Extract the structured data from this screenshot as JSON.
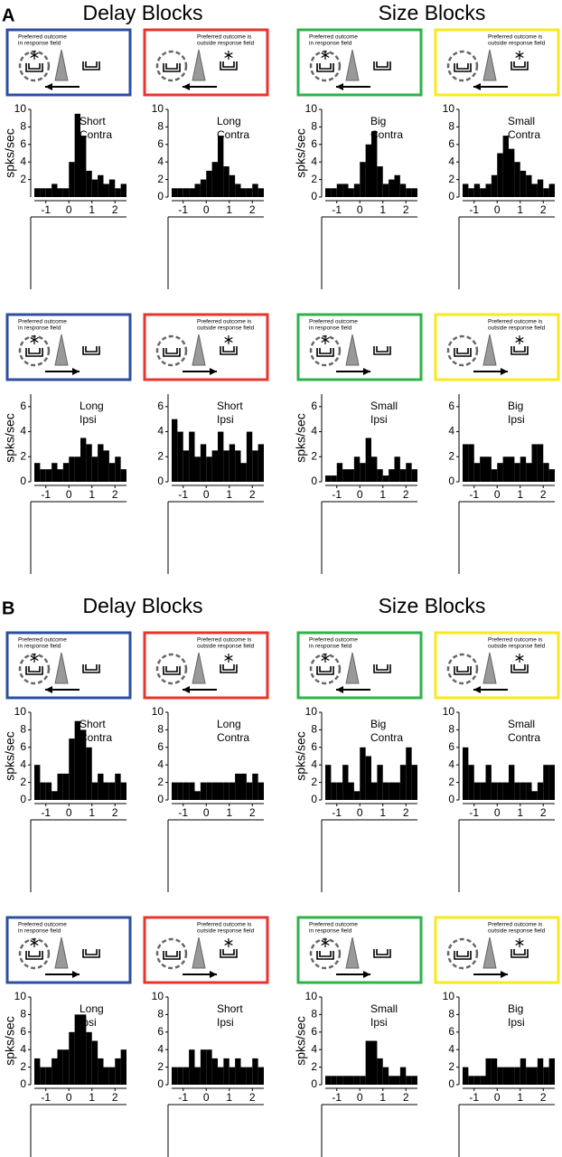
{
  "sections": [
    {
      "label": "A",
      "titles": [
        "Delay Blocks",
        "Size Blocks"
      ]
    },
    {
      "label": "B",
      "titles": [
        "Delay Blocks",
        "Size Blocks"
      ]
    }
  ],
  "chart_data": [
    {
      "type": "histogram",
      "ylabel": "spks/sec",
      "annotation": [
        "Short",
        "Contra"
      ],
      "box": {
        "color": "#2d4fa0",
        "text": [
          "Preferred outcome",
          "in response field"
        ],
        "preferred_side": "left",
        "arrow": "left"
      },
      "bins": [
        -1.5,
        -1.25,
        -1,
        -0.75,
        -0.5,
        -0.25,
        0,
        0.25,
        0.5,
        0.75,
        1,
        1.25,
        1.5,
        1.75,
        2,
        2.25,
        2.5
      ],
      "values": [
        1,
        1,
        1,
        1.5,
        1,
        1,
        4,
        9.5,
        7,
        3,
        2,
        2.5,
        1.5,
        2,
        1,
        1.5
      ],
      "color": "#000000",
      "xlim": [
        -1.5,
        2.5
      ],
      "xticks": [
        -1,
        0,
        1,
        2
      ],
      "ylim": [
        0,
        10
      ],
      "yticks": [
        2,
        4,
        6,
        8,
        10
      ]
    },
    {
      "type": "histogram",
      "annotation": [
        "Long",
        "Contra"
      ],
      "box": {
        "color": "#e8342c",
        "text": [
          "Preferred outcome is",
          "outside response field"
        ],
        "preferred_side": "right",
        "arrow": "left"
      },
      "bins": [
        -1.5,
        -1.25,
        -1,
        -0.75,
        -0.5,
        -0.25,
        0,
        0.25,
        0.5,
        0.75,
        1,
        1.25,
        1.5,
        1.75,
        2,
        2.25,
        2.5
      ],
      "values": [
        1,
        1,
        1,
        1,
        1.5,
        2,
        3,
        4,
        7,
        3.5,
        2.5,
        1.5,
        1,
        1,
        1.5,
        1
      ],
      "color": "#000000",
      "xlim": [
        -1.5,
        2.5
      ],
      "xticks": [
        -1,
        0,
        1,
        2
      ],
      "ylim": [
        0,
        10
      ],
      "yticks": [
        0,
        2,
        4,
        6,
        8,
        10
      ]
    },
    {
      "type": "histogram",
      "ylabel": "spks/sec",
      "annotation": [
        "Big",
        "Contra"
      ],
      "box": {
        "color": "#2db34a",
        "text": [
          "Preferred outcome",
          "in response field"
        ],
        "preferred_side": "left",
        "arrow": "left"
      },
      "bins": [
        -1.5,
        -1.25,
        -1,
        -0.75,
        -0.5,
        -0.25,
        0,
        0.25,
        0.5,
        0.75,
        1,
        1.25,
        1.5,
        1.75,
        2,
        2.25,
        2.5
      ],
      "values": [
        1,
        1,
        1.5,
        1.5,
        1,
        1.5,
        4,
        6,
        7.5,
        3.5,
        1.5,
        2,
        2.5,
        1.5,
        1,
        1
      ],
      "color": "#000000",
      "xlim": [
        -1.5,
        2.5
      ],
      "xticks": [
        -1,
        0,
        1,
        2
      ],
      "ylim": [
        0,
        10
      ],
      "yticks": [
        0,
        2,
        4,
        6,
        8,
        10
      ]
    },
    {
      "type": "histogram",
      "annotation": [
        "Small",
        "Contra"
      ],
      "box": {
        "color": "#f7ea1c",
        "text": [
          "Preferred outcome is",
          "outside response field"
        ],
        "preferred_side": "right",
        "arrow": "left"
      },
      "bins": [
        -1.5,
        -1.25,
        -1,
        -0.75,
        -0.5,
        -0.25,
        0,
        0.25,
        0.5,
        0.75,
        1,
        1.25,
        1.5,
        1.75,
        2,
        2.25,
        2.5
      ],
      "values": [
        1.5,
        1,
        1.5,
        1,
        1.5,
        2.5,
        5,
        7,
        5.5,
        4,
        3,
        2.5,
        1.5,
        2,
        1,
        1.5
      ],
      "color": "#000000",
      "xlim": [
        -1.5,
        2.5
      ],
      "xticks": [
        -1,
        0,
        1,
        2
      ],
      "ylim": [
        0,
        10
      ],
      "yticks": [
        0,
        2,
        4,
        6,
        8,
        10
      ]
    },
    {
      "type": "histogram",
      "ylabel": "spks/sec",
      "annotation": [
        "Long",
        "Ipsi"
      ],
      "box": {
        "color": "#2d4fa0",
        "text": [
          "Preferred outcome",
          "in response field"
        ],
        "preferred_side": "left",
        "arrow": "right"
      },
      "bins": [
        -1.5,
        -1.25,
        -1,
        -0.75,
        -0.5,
        -0.25,
        0,
        0.25,
        0.5,
        0.75,
        1,
        1.25,
        1.5,
        1.75,
        2,
        2.25,
        2.5
      ],
      "values": [
        1.5,
        1,
        1,
        1.5,
        1,
        1.5,
        2,
        2,
        3.5,
        3,
        2,
        3,
        2.5,
        1.5,
        2,
        1
      ],
      "color": "#000000",
      "xlim": [
        -1.5,
        2.5
      ],
      "xticks": [
        -1,
        0,
        1,
        2
      ],
      "ylim": [
        0,
        7
      ],
      "yticks": [
        0,
        2,
        4,
        6
      ]
    },
    {
      "type": "histogram",
      "annotation": [
        "Short",
        "Ipsi"
      ],
      "box": {
        "color": "#e8342c",
        "text": [
          "Preferred outcome is",
          "outside response field"
        ],
        "preferred_side": "right",
        "arrow": "right"
      },
      "bins": [
        -1.5,
        -1.25,
        -1,
        -0.75,
        -0.5,
        -0.25,
        0,
        0.25,
        0.5,
        0.75,
        1,
        1.25,
        1.5,
        1.75,
        2,
        2.25,
        2.5
      ],
      "values": [
        5,
        4,
        2.5,
        4,
        2,
        3,
        2,
        2.5,
        4,
        2.5,
        3,
        2.5,
        1.5,
        4,
        2.5,
        3
      ],
      "color": "#000000",
      "xlim": [
        -1.5,
        2.5
      ],
      "xticks": [
        -1,
        0,
        1,
        2
      ],
      "ylim": [
        0,
        7
      ],
      "yticks": [
        0,
        2,
        4,
        6
      ]
    },
    {
      "type": "histogram",
      "ylabel": "spks/sec",
      "annotation": [
        "Small",
        "Ipsi"
      ],
      "box": {
        "color": "#2db34a",
        "text": [
          "Preferred outcome",
          "in response field"
        ],
        "preferred_side": "left",
        "arrow": "right"
      },
      "bins": [
        -1.5,
        -1.25,
        -1,
        -0.75,
        -0.5,
        -0.25,
        0,
        0.25,
        0.5,
        0.75,
        1,
        1.25,
        1.5,
        1.75,
        2,
        2.25,
        2.5
      ],
      "values": [
        0.5,
        0.5,
        1.5,
        1,
        1,
        2,
        1.5,
        3.5,
        2,
        1,
        0.5,
        1,
        2,
        1,
        1.5,
        1
      ],
      "color": "#000000",
      "xlim": [
        -1.5,
        2.5
      ],
      "xticks": [
        -1,
        0,
        1,
        2
      ],
      "ylim": [
        0,
        7
      ],
      "yticks": [
        0,
        2,
        4,
        6
      ]
    },
    {
      "type": "histogram",
      "annotation": [
        "Big",
        "Ipsi"
      ],
      "box": {
        "color": "#f7ea1c",
        "text": [
          "Preferred outcome is",
          "outside response field"
        ],
        "preferred_side": "right",
        "arrow": "right"
      },
      "bins": [
        -1.5,
        -1.25,
        -1,
        -0.75,
        -0.5,
        -0.25,
        0,
        0.25,
        0.5,
        0.75,
        1,
        1.25,
        1.5,
        1.75,
        2,
        2.25,
        2.5
      ],
      "values": [
        3,
        3,
        1.5,
        2,
        2,
        1,
        1.5,
        2,
        2,
        1.5,
        2,
        1.5,
        3,
        3,
        1.5,
        1
      ],
      "color": "#000000",
      "xlim": [
        -1.5,
        2.5
      ],
      "xticks": [
        -1,
        0,
        1,
        2
      ],
      "ylim": [
        0,
        7
      ],
      "yticks": [
        0,
        2,
        4,
        6
      ]
    },
    {
      "type": "histogram",
      "ylabel": "spks/sec",
      "annotation": [
        "Short",
        "Contra"
      ],
      "box": {
        "color": "#2d4fa0",
        "text": [
          "Preferred outcome",
          "in response field"
        ],
        "preferred_side": "left",
        "arrow": "left"
      },
      "bins": [
        -1.5,
        -1.25,
        -1,
        -0.75,
        -0.5,
        -0.25,
        0,
        0.25,
        0.5,
        0.75,
        1,
        1.25,
        1.5,
        1.75,
        2,
        2.25,
        2.5
      ],
      "values": [
        4,
        2,
        2,
        1,
        3,
        3,
        7,
        9,
        8,
        6,
        2,
        3,
        2,
        2,
        3,
        2
      ],
      "color": "#000000",
      "xlim": [
        -1.5,
        2.5
      ],
      "xticks": [
        -1,
        0,
        1,
        2
      ],
      "ylim": [
        0,
        10
      ],
      "yticks": [
        0,
        2,
        4,
        6,
        8,
        10
      ]
    },
    {
      "type": "histogram",
      "annotation": [
        "Long",
        "Contra"
      ],
      "box": {
        "color": "#e8342c",
        "text": [
          "Preferred outcome is",
          "outside response field"
        ],
        "preferred_side": "right",
        "arrow": "left"
      },
      "bins": [
        -1.5,
        -1.25,
        -1,
        -0.75,
        -0.5,
        -0.25,
        0,
        0.25,
        0.5,
        0.75,
        1,
        1.25,
        1.5,
        1.75,
        2,
        2.25,
        2.5
      ],
      "values": [
        2,
        2,
        2,
        2,
        1,
        2,
        2,
        2,
        2,
        2,
        2,
        3,
        3,
        2,
        3,
        2
      ],
      "color": "#000000",
      "xlim": [
        -1.5,
        2.5
      ],
      "xticks": [
        -1,
        0,
        1,
        2
      ],
      "ylim": [
        0,
        10
      ],
      "yticks": [
        0,
        2,
        4,
        6,
        8,
        10
      ]
    },
    {
      "type": "histogram",
      "ylabel": "spks/sec",
      "annotation": [
        "Big",
        "Contra"
      ],
      "box": {
        "color": "#2db34a",
        "text": [
          "Preferred outcome",
          "in response field"
        ],
        "preferred_side": "left",
        "arrow": "left"
      },
      "bins": [
        -1.5,
        -1.25,
        -1,
        -0.75,
        -0.5,
        -0.25,
        0,
        0.25,
        0.5,
        0.75,
        1,
        1.25,
        1.5,
        1.75,
        2,
        2.25,
        2.5
      ],
      "values": [
        4,
        2,
        2,
        4,
        2,
        1,
        6,
        5,
        2,
        4,
        2,
        2,
        2,
        4,
        6,
        4
      ],
      "color": "#000000",
      "xlim": [
        -1.5,
        2.5
      ],
      "xticks": [
        -1,
        0,
        1,
        2
      ],
      "ylim": [
        0,
        10
      ],
      "yticks": [
        0,
        2,
        4,
        6,
        8,
        10
      ]
    },
    {
      "type": "histogram",
      "annotation": [
        "Small",
        "Contra"
      ],
      "box": {
        "color": "#f7ea1c",
        "text": [
          "Preferred outcome is",
          "outside response field"
        ],
        "preferred_side": "right",
        "arrow": "left"
      },
      "bins": [
        -1.5,
        -1.25,
        -1,
        -0.75,
        -0.5,
        -0.25,
        0,
        0.25,
        0.5,
        0.75,
        1,
        1.25,
        1.5,
        1.75,
        2,
        2.25,
        2.5
      ],
      "values": [
        6,
        4,
        2,
        2,
        4,
        2,
        2,
        2,
        4,
        2,
        2,
        2,
        1,
        2,
        4,
        4
      ],
      "color": "#000000",
      "xlim": [
        -1.5,
        2.5
      ],
      "xticks": [
        -1,
        0,
        1,
        2
      ],
      "ylim": [
        0,
        10
      ],
      "yticks": [
        0,
        2,
        4,
        6,
        8,
        10
      ]
    },
    {
      "type": "histogram",
      "ylabel": "spks/sec",
      "annotation": [
        "Long",
        "Ipsi"
      ],
      "box": {
        "color": "#2d4fa0",
        "text": [
          "Preferred outcome",
          "in response field"
        ],
        "preferred_side": "left",
        "arrow": "right"
      },
      "bins": [
        -1.5,
        -1.25,
        -1,
        -0.75,
        -0.5,
        -0.25,
        0,
        0.25,
        0.5,
        0.75,
        1,
        1.25,
        1.5,
        1.75,
        2,
        2.25,
        2.5
      ],
      "values": [
        3,
        2,
        2,
        3,
        4,
        4,
        6,
        8,
        8,
        6,
        5,
        3,
        2,
        2,
        3,
        4
      ],
      "color": "#000000",
      "xlim": [
        -1.5,
        2.5
      ],
      "xticks": [
        -1,
        0,
        1,
        2
      ],
      "ylim": [
        0,
        10
      ],
      "yticks": [
        0,
        2,
        4,
        6,
        8,
        10
      ]
    },
    {
      "type": "histogram",
      "annotation": [
        "Short",
        "Ipsi"
      ],
      "box": {
        "color": "#e8342c",
        "text": [
          "Preferred outcome is",
          "outside response field"
        ],
        "preferred_side": "right",
        "arrow": "right"
      },
      "bins": [
        -1.5,
        -1.25,
        -1,
        -0.75,
        -0.5,
        -0.25,
        0,
        0.25,
        0.5,
        0.75,
        1,
        1.25,
        1.5,
        1.75,
        2,
        2.25,
        2.5
      ],
      "values": [
        2,
        2,
        2,
        4,
        2,
        4,
        4,
        3,
        2,
        3,
        2,
        3,
        2,
        2,
        3,
        2
      ],
      "color": "#000000",
      "xlim": [
        -1.5,
        2.5
      ],
      "xticks": [
        -1,
        0,
        1,
        2
      ],
      "ylim": [
        0,
        10
      ],
      "yticks": [
        0,
        2,
        4,
        6,
        8,
        10
      ]
    },
    {
      "type": "histogram",
      "ylabel": "spks/sec",
      "annotation": [
        "Small",
        "Ipsi"
      ],
      "box": {
        "color": "#2db34a",
        "text": [
          "Preferred outcome",
          "in response field"
        ],
        "preferred_side": "left",
        "arrow": "right"
      },
      "bins": [
        -1.5,
        -1.25,
        -1,
        -0.75,
        -0.5,
        -0.25,
        0,
        0.25,
        0.5,
        0.75,
        1,
        1.25,
        1.5,
        1.75,
        2,
        2.25,
        2.5
      ],
      "values": [
        1,
        1,
        1,
        1,
        1,
        1,
        1,
        5,
        5,
        3,
        2,
        1,
        1,
        2,
        1,
        1
      ],
      "color": "#000000",
      "xlim": [
        -1.5,
        2.5
      ],
      "xticks": [
        -1,
        0,
        1,
        2
      ],
      "ylim": [
        0,
        10
      ],
      "yticks": [
        0,
        2,
        4,
        6,
        8,
        10
      ]
    },
    {
      "type": "histogram",
      "annotation": [
        "Big",
        "Ipsi"
      ],
      "box": {
        "color": "#f7ea1c",
        "text": [
          "Preferred outcome is",
          "outside response field"
        ],
        "preferred_side": "right",
        "arrow": "right"
      },
      "bins": [
        -1.5,
        -1.25,
        -1,
        -0.75,
        -0.5,
        -0.25,
        0,
        0.25,
        0.5,
        0.75,
        1,
        1.25,
        1.5,
        1.75,
        2,
        2.25,
        2.5
      ],
      "values": [
        2,
        1,
        1,
        1,
        3,
        3,
        2,
        2,
        2,
        2,
        3,
        2,
        2,
        3,
        2,
        3
      ],
      "color": "#000000",
      "xlim": [
        -1.5,
        2.5
      ],
      "xticks": [
        -1,
        0,
        1,
        2
      ],
      "ylim": [
        0,
        10
      ],
      "yticks": [
        0,
        2,
        4,
        6,
        8,
        10
      ]
    }
  ]
}
